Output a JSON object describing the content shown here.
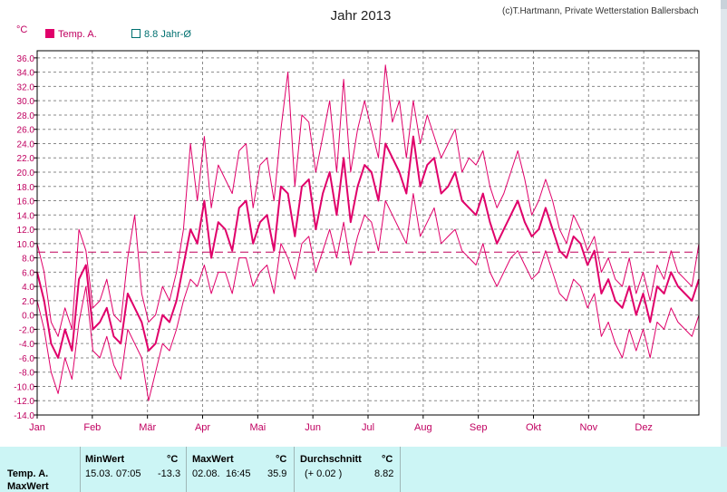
{
  "chart_data": {
    "type": "line",
    "title": "Jahr 2013",
    "credit": "(c)T.Hartmann, Private Wetterstation Ballersbach",
    "ylabel": "°C",
    "ylim": [
      -14,
      37
    ],
    "yticks": [
      "36.0",
      "34.0",
      "32.0",
      "30.0",
      "28.0",
      "26.0",
      "24.0",
      "22.0",
      "20.0",
      "18.0",
      "16.0",
      "14.0",
      "12.0",
      "10.0",
      "8.0",
      "6.0",
      "4.0",
      "2.0",
      "0.0",
      "-2.0",
      "-4.0",
      "-6.0",
      "-8.0",
      "-10.0",
      "-12.0",
      "-14.0"
    ],
    "months": [
      "Jan",
      "Feb",
      "Mär",
      "Apr",
      "Mai",
      "Jun",
      "Jul",
      "Aug",
      "Sep",
      "Okt",
      "Nov",
      "Dez"
    ],
    "legend": [
      {
        "label": "Temp. A.",
        "color": "#e0006a",
        "style": "filled"
      },
      {
        "label": "8.8 Jahr-Ø",
        "color": "#007070",
        "style": "hollow"
      }
    ],
    "average_line": 8.8,
    "grid": true,
    "series": [
      {
        "name": "Temp. A.",
        "role": "mean",
        "values": [
          6,
          2,
          -4,
          -6,
          -2,
          -5,
          5,
          7,
          -2,
          -1,
          1,
          -3,
          -4,
          3,
          1,
          -1,
          -5,
          -4,
          0,
          -1,
          2,
          7,
          12,
          10,
          16,
          8,
          13,
          12,
          9,
          15,
          16,
          10,
          13,
          14,
          9,
          18,
          17,
          11,
          18,
          19,
          12,
          17,
          20,
          14,
          22,
          13,
          18,
          21,
          20,
          16,
          24,
          22,
          20,
          17,
          25,
          18,
          21,
          22,
          17,
          18,
          20,
          16,
          15,
          14,
          17,
          13,
          10,
          12,
          14,
          16,
          13,
          11,
          12,
          15,
          12,
          9,
          8,
          11,
          10,
          7,
          9,
          3,
          5,
          2,
          1,
          4,
          0,
          3,
          -1,
          4,
          3,
          6,
          4,
          3,
          2,
          5
        ]
      },
      {
        "name": "Temp. A.",
        "role": "max",
        "values": [
          10,
          6,
          -1,
          -3,
          1,
          -2,
          12,
          9,
          1,
          2,
          5,
          0,
          -1,
          8,
          14,
          3,
          -1,
          0,
          4,
          2,
          6,
          12,
          24,
          16,
          25,
          15,
          21,
          19,
          17,
          23,
          24,
          15,
          21,
          22,
          16,
          26,
          34,
          18,
          28,
          27,
          20,
          25,
          30,
          20,
          33,
          20,
          26,
          30,
          26,
          22,
          35,
          27,
          30,
          22,
          30,
          24,
          28,
          25,
          22,
          24,
          26,
          20,
          22,
          21,
          23,
          18,
          15,
          17,
          20,
          23,
          19,
          14,
          16,
          19,
          16,
          12,
          10,
          14,
          12,
          9,
          11,
          6,
          8,
          5,
          4,
          8,
          3,
          6,
          2,
          7,
          5,
          9,
          6,
          5,
          4,
          10
        ]
      },
      {
        "name": "Temp. A.",
        "role": "min",
        "values": [
          2,
          -2,
          -8,
          -11,
          -6,
          -9,
          -1,
          4,
          -5,
          -6,
          -3,
          -7,
          -9,
          -2,
          -4,
          -6,
          -12,
          -8,
          -4,
          -5,
          -2,
          2,
          5,
          4,
          7,
          3,
          6,
          6,
          3,
          8,
          8,
          4,
          6,
          7,
          3,
          10,
          8,
          5,
          10,
          11,
          6,
          9,
          12,
          8,
          13,
          7,
          11,
          14,
          13,
          9,
          16,
          14,
          12,
          10,
          17,
          11,
          13,
          15,
          10,
          11,
          12,
          9,
          8,
          7,
          10,
          6,
          4,
          6,
          8,
          9,
          7,
          5,
          6,
          9,
          6,
          3,
          2,
          5,
          4,
          1,
          3,
          -3,
          -1,
          -4,
          -6,
          -2,
          -5,
          -2,
          -6,
          -1,
          -2,
          1,
          -1,
          -2,
          -3,
          0
        ]
      }
    ]
  },
  "stats": {
    "headers": {
      "min": "MinWert",
      "max": "MaxWert",
      "avg": "Durchschnitt",
      "unit": "°C"
    },
    "row_label": "Temp. A.",
    "row_label2": "MaxWert",
    "min_date": "15.03.",
    "min_time": "07:05",
    "min_value": "-13.3",
    "max_date": "02.08.",
    "max_time": "16:45",
    "max_value": "35.9",
    "avg_delta": "(+ 0.02 )",
    "avg_value": "8.82"
  }
}
